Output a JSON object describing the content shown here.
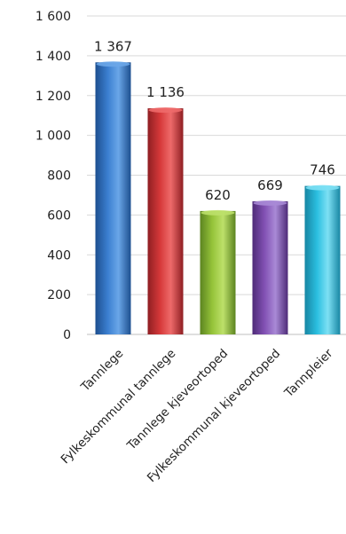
{
  "chart_data": {
    "type": "bar",
    "title": "",
    "xlabel": "",
    "ylabel": "",
    "ylim": [
      0,
      1600
    ],
    "yticks": [
      0,
      200,
      400,
      600,
      800,
      1000,
      1200,
      1400,
      1600
    ],
    "ytick_labels": [
      "0",
      "200",
      "400",
      "600",
      "800",
      "1 000",
      "1 200",
      "1 400",
      "1 600"
    ],
    "grid": true,
    "categories": [
      "Tannlege",
      "Fylkeskommunal tannlege",
      "Tannlege kjeveortoped",
      "Fylkeskommunal kjeveortoped",
      "Tannpleier"
    ],
    "values": [
      1367,
      1136,
      620,
      669,
      746
    ],
    "value_labels": [
      "1 367",
      "1 136",
      "620",
      "669",
      "746"
    ],
    "colors": [
      "#3b7fd0",
      "#d6393a",
      "#96c43a",
      "#8352b5",
      "#2bbfe0"
    ],
    "colors_dark": [
      "#1d4f8f",
      "#8f1e22",
      "#5c8420",
      "#4e2b78",
      "#1786a3"
    ],
    "colors_light": [
      "#6aa6e8",
      "#ee6a6a",
      "#bde06a",
      "#a98ad6",
      "#7de0f4"
    ]
  }
}
